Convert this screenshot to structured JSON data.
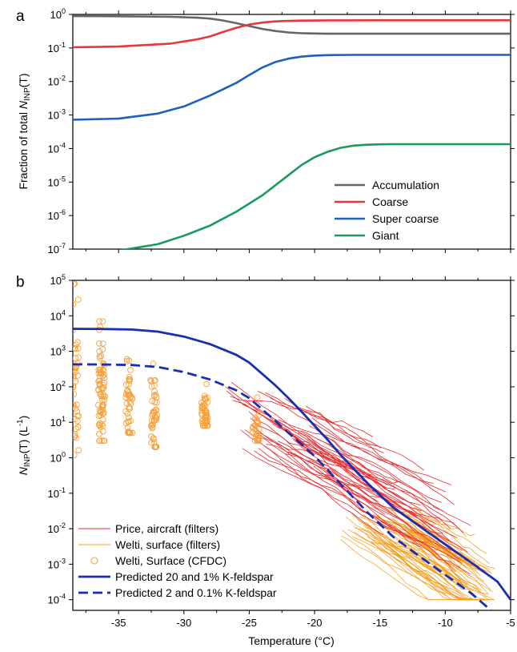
{
  "chart_data": [
    {
      "panel": "a",
      "type": "line",
      "ylabel": "Fraction of total N_INP(T)",
      "yscale": "log",
      "ylim": [
        1e-07,
        1
      ],
      "xlim": [
        -38.5,
        -5
      ],
      "grid": false,
      "legend_position": "bottom-right",
      "x_ticks": [
        -35,
        -30,
        -25,
        -20,
        -15,
        -10,
        -5
      ],
      "y_ticks": [
        {
          "value": 1e-07,
          "base": "10",
          "exp": "-7"
        },
        {
          "value": 1e-06,
          "base": "10",
          "exp": "-6"
        },
        {
          "value": 1e-05,
          "base": "10",
          "exp": "-5"
        },
        {
          "value": 0.0001,
          "base": "10",
          "exp": "-4"
        },
        {
          "value": 0.001,
          "base": "10",
          "exp": "-3"
        },
        {
          "value": 0.01,
          "base": "10",
          "exp": "-2"
        },
        {
          "value": 0.1,
          "base": "10",
          "exp": "-1"
        },
        {
          "value": 1,
          "base": "10",
          "exp": "0"
        }
      ],
      "series": [
        {
          "name": "Accumulation",
          "color": "#666666",
          "x": [
            -38.5,
            -35,
            -31,
            -29,
            -28,
            -27,
            -26,
            -25,
            -24,
            -23,
            -22,
            -21,
            -20,
            -19,
            -18,
            -15,
            -10,
            -5
          ],
          "y": [
            0.89,
            0.88,
            0.85,
            0.8,
            0.75,
            0.66,
            0.55,
            0.45,
            0.37,
            0.32,
            0.29,
            0.275,
            0.27,
            0.265,
            0.265,
            0.265,
            0.265,
            0.265
          ]
        },
        {
          "name": "Coarse",
          "color": "#e8383d",
          "x": [
            -38.5,
            -35,
            -31,
            -29,
            -28,
            -27,
            -26,
            -25,
            -24,
            -23,
            -22,
            -21,
            -20,
            -19,
            -18,
            -15,
            -10,
            -5
          ],
          "y": [
            0.105,
            0.11,
            0.135,
            0.18,
            0.22,
            0.3,
            0.4,
            0.5,
            0.57,
            0.62,
            0.64,
            0.655,
            0.66,
            0.665,
            0.665,
            0.67,
            0.67,
            0.67
          ]
        },
        {
          "name": "Super coarse",
          "color": "#1f5fbf",
          "x": [
            -38.5,
            -35,
            -32,
            -30,
            -28,
            -26,
            -25,
            -24,
            -23,
            -22,
            -21,
            -20,
            -19,
            -17,
            -15,
            -10,
            -5
          ],
          "y": [
            0.00072,
            0.00078,
            0.0011,
            0.0018,
            0.0038,
            0.009,
            0.0155,
            0.026,
            0.038,
            0.048,
            0.055,
            0.059,
            0.061,
            0.062,
            0.062,
            0.062,
            0.062
          ]
        },
        {
          "name": "Giant",
          "color": "#1a9a5c",
          "x": [
            -38.5,
            -35,
            -32,
            -30,
            -28,
            -26,
            -24,
            -23,
            -22,
            -21,
            -20,
            -19,
            -18,
            -17,
            -16,
            -15,
            -14,
            -10,
            -5
          ],
          "y": [
            8e-08,
            9e-08,
            1.4e-07,
            2.5e-07,
            5e-07,
            1.3e-06,
            4e-06,
            8e-06,
            1.6e-05,
            3.2e-05,
            5.5e-05,
            8e-05,
            0.000105,
            0.000122,
            0.00013,
            0.000133,
            0.000135,
            0.000135,
            0.000135
          ]
        }
      ]
    },
    {
      "panel": "b",
      "type": "line",
      "xlabel": "Temperature (°C)",
      "ylabel": "N_INP(T) (L^-1)",
      "yscale": "log",
      "ylim": [
        5e-05,
        100000.0
      ],
      "xlim": [
        -38.5,
        -5
      ],
      "grid": false,
      "legend_position": "bottom-left",
      "x_ticks": [
        -35,
        -30,
        -25,
        -20,
        -15,
        -10,
        -5
      ],
      "y_ticks": [
        {
          "value": 0.0001,
          "base": "10",
          "exp": "-4"
        },
        {
          "value": 0.001,
          "base": "10",
          "exp": "-3"
        },
        {
          "value": 0.01,
          "base": "10",
          "exp": "-2"
        },
        {
          "value": 0.1,
          "base": "10",
          "exp": "-1"
        },
        {
          "value": 1,
          "base": "10",
          "exp": "0"
        },
        {
          "value": 10,
          "base": "10",
          "exp": "1"
        },
        {
          "value": 100,
          "base": "10",
          "exp": "2"
        },
        {
          "value": 1000,
          "base": "10",
          "exp": "3"
        },
        {
          "value": 10000,
          "base": "10",
          "exp": "4"
        },
        {
          "value": 100000,
          "base": "10",
          "exp": "5"
        }
      ],
      "series": [
        {
          "name": "Price, aircraft (filters)",
          "color": "#e8282d",
          "style": "thin-lines",
          "note_range": {
            "x": [
              -27,
              -8
            ],
            "y": [
              0.02,
              250
            ]
          }
        },
        {
          "name": "Welti, surface (filters)",
          "color": "#f39a1a",
          "style": "thin-lines",
          "note_range": {
            "x": [
              -18,
              -6
            ],
            "y": [
              0.0001,
              0.05
            ]
          }
        },
        {
          "name": "Welti, Surface (CFDC)",
          "color": "#f7a13b",
          "style": "open-circles",
          "columns": [
            {
              "x": -38.3,
              "y_range": [
                1.2,
                80000
              ]
            },
            {
              "x": -36.3,
              "y_range": [
                3,
                7000
              ]
            },
            {
              "x": -34.2,
              "y_range": [
                5,
                600
              ]
            },
            {
              "x": -32.3,
              "y_range": [
                2,
                450
              ]
            },
            {
              "x": -28.4,
              "y_range": [
                8,
                120
              ]
            },
            {
              "x": -24.5,
              "y_range": [
                3,
                50
              ]
            }
          ]
        },
        {
          "name": "Predicted 20 and 1% K-feldspar",
          "color": "#1a2fb0",
          "style": "solid",
          "x": [
            -38.5,
            -36,
            -34,
            -32,
            -30,
            -28,
            -26,
            -25,
            -24,
            -23,
            -22,
            -21,
            -20,
            -19,
            -18,
            -16,
            -14,
            -12,
            -10,
            -8,
            -6,
            -5
          ],
          "y": [
            4300,
            4250,
            4100,
            3600,
            2600,
            1600,
            800,
            480,
            230,
            110,
            48,
            20,
            8,
            3.2,
            1.2,
            0.2,
            0.04,
            0.012,
            0.0036,
            0.0011,
            0.00032,
            0.0001
          ]
        },
        {
          "name": "Predicted 2 and 0.1% K-feldspar",
          "color": "#1a2fb0",
          "style": "dashed",
          "x": [
            -38.5,
            -36,
            -34,
            -32,
            -30,
            -28,
            -26,
            -25,
            -24,
            -23,
            -22,
            -21,
            -20,
            -19,
            -18,
            -16,
            -14,
            -12,
            -10,
            -8,
            -6.5
          ],
          "y": [
            430,
            425,
            410,
            360,
            260,
            160,
            80,
            48,
            23,
            11,
            5,
            2.4,
            1.1,
            0.45,
            0.18,
            0.03,
            0.006,
            0.0017,
            0.0005,
            0.00015,
            5e-05
          ]
        }
      ]
    }
  ],
  "labels": {
    "panel_a": "a",
    "panel_b": "b",
    "a_ylabel_prefix": "Fraction of total ",
    "a_ylabel_N": "N",
    "a_ylabel_sub": "INP",
    "a_ylabel_suffix": "(T)",
    "b_ylabel_N": "N",
    "b_ylabel_sub": "INP",
    "b_ylabel_mid": "(T) (L",
    "b_ylabel_exp": "-1",
    "b_ylabel_end": ")",
    "xlabel": "Temperature (°C)"
  }
}
